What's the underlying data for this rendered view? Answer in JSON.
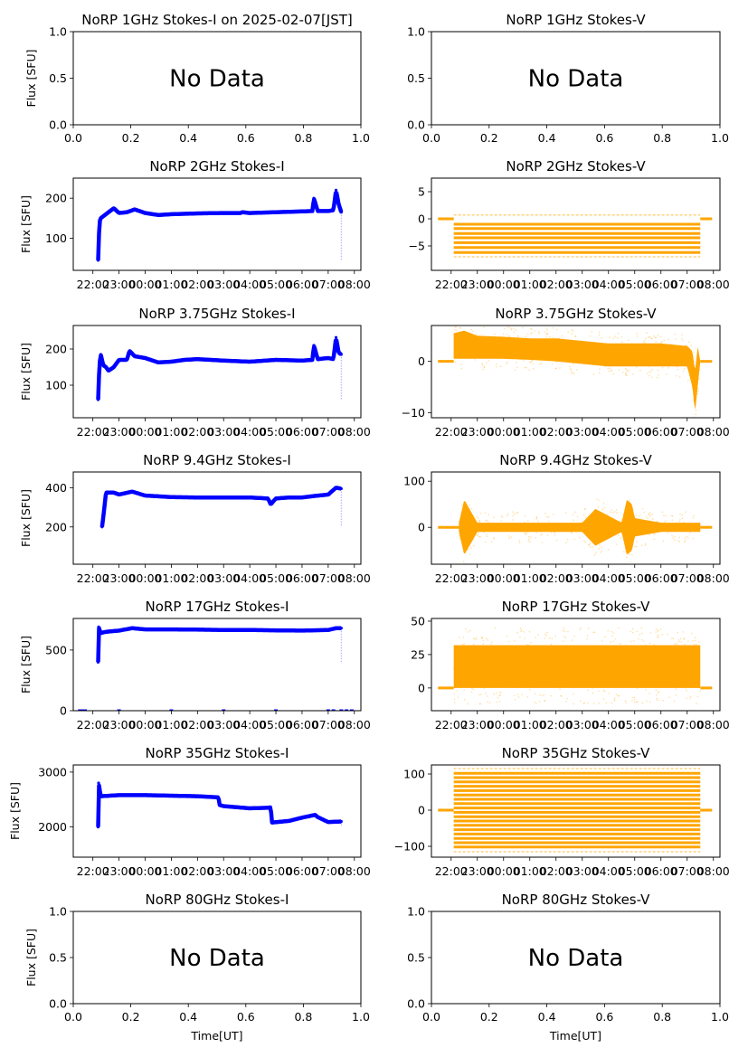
{
  "figure": {
    "time_ticks": [
      "22:00",
      "23:00",
      "00:00",
      "01:00",
      "02:00",
      "03:00",
      "04:00",
      "05:00",
      "06:00",
      "07:00",
      "08:00"
    ],
    "colors": {
      "stokes_i": "#0000ff",
      "stokes_v": "#ffa500"
    }
  },
  "chart_data": [
    {
      "id": "1ghz-i",
      "type": "scatter",
      "title": "NoRP 1GHz Stokes-I on 2025-02-07[JST]",
      "ylabel": "Flux [SFU]",
      "xlabel": "",
      "no_data": true,
      "no_data_text": "No Data",
      "xlim": [
        0,
        1
      ],
      "ylim": [
        0,
        1
      ],
      "xticks": [
        "0.0",
        "0.2",
        "0.4",
        "0.6",
        "0.8",
        "1.0"
      ],
      "yticks": [
        0.0,
        0.5,
        1.0
      ],
      "ytick_labels": [
        "0.0",
        "0.5",
        "1.0"
      ]
    },
    {
      "id": "1ghz-v",
      "type": "scatter",
      "title": "NoRP 1GHz Stokes-V",
      "ylabel": "",
      "xlabel": "",
      "no_data": true,
      "no_data_text": "No Data",
      "xlim": [
        0,
        1
      ],
      "ylim": [
        0,
        1
      ],
      "xticks": [
        "0.0",
        "0.2",
        "0.4",
        "0.6",
        "0.8",
        "1.0"
      ],
      "yticks": [
        0.0,
        0.5,
        1.0
      ],
      "ytick_labels": [
        "0.0",
        "0.5",
        "1.0"
      ]
    },
    {
      "id": "2ghz-i",
      "type": "scatter",
      "title": "NoRP 2GHz Stokes-I",
      "ylabel": "Flux [SFU]",
      "xlabel": "",
      "series_color": "#0000ff",
      "time_axis": true,
      "ylim": [
        20,
        250
      ],
      "yticks": [
        100,
        200
      ],
      "ytick_labels": [
        "100",
        "200"
      ],
      "x_hours": [
        0.2,
        0.25,
        0.3,
        0.5,
        0.6,
        0.8,
        1.0,
        1.3,
        1.6,
        2.0,
        2.5,
        3.0,
        4.0,
        5.0,
        5.65,
        5.7,
        6.0,
        7.0,
        8.0,
        8.4,
        8.45,
        8.6,
        9.0,
        9.2,
        9.3,
        9.4,
        9.5
      ],
      "values": [
        45,
        140,
        150,
        160,
        165,
        175,
        163,
        165,
        172,
        163,
        158,
        160,
        162,
        163,
        163,
        165,
        163,
        165,
        167,
        168,
        200,
        168,
        168,
        170,
        220,
        185,
        165
      ]
    },
    {
      "id": "2ghz-v",
      "type": "scatter",
      "title": "NoRP 2GHz Stokes-V",
      "ylabel": "",
      "xlabel": "",
      "series_color": "#ffa500",
      "time_axis": true,
      "banded": true,
      "ylim": [
        -9.5,
        7.5
      ],
      "yticks": [
        -5,
        0,
        5
      ],
      "ytick_labels": [
        "−5",
        "0",
        "5"
      ],
      "active_hours": [
        0.1,
        9.5
      ],
      "band_levels": [
        0.7,
        -1,
        -1.8,
        -2.7,
        -3.5,
        -4.4,
        -5.3,
        -6.2,
        -7
      ],
      "baseline": 0
    },
    {
      "id": "375ghz-i",
      "type": "scatter",
      "title": "NoRP 3.75GHz Stokes-I",
      "ylabel": "Flux [SFU]",
      "xlabel": "",
      "series_color": "#0000ff",
      "time_axis": true,
      "ylim": [
        10,
        265
      ],
      "yticks": [
        100,
        200
      ],
      "ytick_labels": [
        "100",
        "200"
      ],
      "x_hours": [
        0.2,
        0.25,
        0.3,
        0.4,
        0.5,
        0.6,
        0.8,
        1.0,
        1.3,
        1.4,
        1.6,
        2.0,
        2.5,
        3.0,
        3.5,
        4.0,
        5.0,
        6.0,
        7.0,
        8.0,
        8.4,
        8.45,
        8.6,
        9.0,
        9.2,
        9.3,
        9.4,
        9.5
      ],
      "values": [
        60,
        155,
        185,
        155,
        150,
        140,
        150,
        170,
        170,
        195,
        180,
        175,
        163,
        165,
        170,
        172,
        168,
        165,
        170,
        168,
        170,
        210,
        172,
        175,
        172,
        232,
        190,
        185
      ]
    },
    {
      "id": "375ghz-v",
      "type": "scatter",
      "title": "NoRP 3.75GHz Stokes-V",
      "ylabel": "",
      "xlabel": "",
      "series_color": "#ffa500",
      "time_axis": true,
      "ylim": [
        -11,
        7
      ],
      "yticks": [
        -10,
        0
      ],
      "ytick_labels": [
        "−10",
        "0"
      ],
      "x_hours": [
        0.1,
        0.5,
        1.0,
        2.0,
        3.0,
        4.0,
        5.0,
        6.0,
        7.0,
        8.0,
        9.0,
        9.2,
        9.3,
        9.4,
        9.5
      ],
      "upper": [
        5.5,
        6,
        5,
        4.8,
        4.5,
        4.5,
        4,
        3.5,
        3.5,
        3.5,
        3,
        2,
        -2,
        3,
        0
      ],
      "lower": [
        0.5,
        0.5,
        0.5,
        0.5,
        0.3,
        0,
        -0.5,
        -1,
        -1,
        -1,
        -1,
        -5,
        -10,
        -5,
        0
      ],
      "baseline": 0
    },
    {
      "id": "94ghz-i",
      "type": "scatter",
      "title": "NoRP 9.4GHz Stokes-I",
      "ylabel": "Flux [SFU]",
      "xlabel": "",
      "series_color": "#0000ff",
      "time_axis": true,
      "ylim": [
        10,
        480
      ],
      "yticks": [
        200,
        400
      ],
      "ytick_labels": [
        "200",
        "400"
      ],
      "x_hours": [
        0.35,
        0.4,
        0.5,
        0.8,
        1.0,
        1.5,
        2.0,
        3.0,
        4.0,
        5.0,
        6.0,
        6.7,
        6.8,
        7.0,
        7.5,
        8.0,
        8.5,
        9.0,
        9.3,
        9.5
      ],
      "values": [
        200,
        250,
        375,
        375,
        365,
        380,
        360,
        352,
        350,
        350,
        350,
        345,
        315,
        345,
        350,
        350,
        358,
        365,
        400,
        395
      ]
    },
    {
      "id": "94ghz-v",
      "type": "scatter",
      "title": "NoRP 9.4GHz Stokes-V",
      "ylabel": "",
      "xlabel": "",
      "series_color": "#ffa500",
      "time_axis": true,
      "ylim": [
        -80,
        120
      ],
      "yticks": [
        0,
        100
      ],
      "ytick_labels": [
        "0",
        "100"
      ],
      "x_hours": [
        0.3,
        0.5,
        1.0,
        2.0,
        3.0,
        4.0,
        5.0,
        5.5,
        6.5,
        6.7,
        6.9,
        7.0,
        8.0,
        9.0,
        9.5
      ],
      "upper": [
        10,
        60,
        10,
        10,
        10,
        10,
        10,
        40,
        10,
        60,
        50,
        20,
        10,
        10,
        10
      ],
      "lower": [
        -10,
        -60,
        -10,
        -10,
        -10,
        -10,
        -10,
        -40,
        -10,
        -60,
        -50,
        -20,
        -10,
        -10,
        -10
      ],
      "baseline": 0
    },
    {
      "id": "17ghz-i",
      "type": "scatter",
      "title": "NoRP 17GHz Stokes-I",
      "ylabel": "Flux [SFU]",
      "xlabel": "",
      "series_color": "#0000ff",
      "time_axis": true,
      "ylim": [
        0,
        760
      ],
      "yticks": [
        0,
        500
      ],
      "ytick_labels": [
        "0",
        "500"
      ],
      "x_hours": [
        0.2,
        0.22,
        0.3,
        0.5,
        1.0,
        1.5,
        2.0,
        3.0,
        4.0,
        5.0,
        6.0,
        7.0,
        8.0,
        9.0,
        9.3,
        9.5
      ],
      "values": [
        400,
        690,
        640,
        650,
        660,
        680,
        670,
        670,
        668,
        665,
        665,
        662,
        660,
        665,
        680,
        680
      ]
    },
    {
      "id": "17ghz-v",
      "type": "scatter",
      "title": "NoRP 17GHz Stokes-V",
      "ylabel": "",
      "xlabel": "",
      "series_color": "#ffa500",
      "time_axis": true,
      "ylim": [
        -17,
        52
      ],
      "yticks": [
        0,
        25,
        50
      ],
      "ytick_labels": [
        "0",
        "25",
        "50"
      ],
      "active_hours": [
        0.1,
        9.5
      ],
      "upper_value": 32,
      "lower_value": 0,
      "scatter_range": [
        -12,
        45
      ],
      "baseline": 0
    },
    {
      "id": "35ghz-i",
      "type": "scatter",
      "title": "NoRP 35GHz Stokes-I",
      "ylabel": "Flux [SFU]",
      "xlabel": "",
      "series_color": "#0000ff",
      "time_axis": true,
      "ylim": [
        1450,
        3130
      ],
      "yticks": [
        2000,
        3000
      ],
      "ytick_labels": [
        "2000",
        "3000"
      ],
      "x_hours": [
        0.2,
        0.22,
        0.3,
        1.0,
        2.0,
        3.0,
        4.0,
        4.8,
        4.85,
        5.0,
        6.0,
        6.7,
        6.8,
        6.85,
        7.5,
        8.0,
        8.5,
        8.6,
        9.0,
        9.5
      ],
      "values": [
        2000,
        2800,
        2560,
        2580,
        2580,
        2570,
        2560,
        2540,
        2400,
        2380,
        2340,
        2350,
        2360,
        2080,
        2110,
        2170,
        2220,
        2180,
        2090,
        2100
      ]
    },
    {
      "id": "35ghz-v",
      "type": "scatter",
      "title": "NoRP 35GHz Stokes-V",
      "ylabel": "",
      "xlabel": "",
      "series_color": "#ffa500",
      "time_axis": true,
      "banded": true,
      "ylim": [
        -130,
        125
      ],
      "yticks": [
        -100,
        0,
        100
      ],
      "ytick_labels": [
        "−100",
        "0",
        "100"
      ],
      "active_hours": [
        0.1,
        9.5
      ],
      "band_levels": [
        115,
        102,
        90,
        78,
        66,
        54,
        42,
        30,
        18,
        6,
        -6,
        -18,
        -30,
        -42,
        -54,
        -66,
        -78,
        -90,
        -102,
        -115
      ],
      "baseline": 0
    },
    {
      "id": "80ghz-i",
      "type": "scatter",
      "title": "NoRP 80GHz Stokes-I",
      "ylabel": "Flux [SFU]",
      "xlabel": "Time[UT]",
      "no_data": true,
      "no_data_text": "No Data",
      "xlim": [
        0,
        1
      ],
      "ylim": [
        0,
        1
      ],
      "xticks": [
        "0.0",
        "0.2",
        "0.4",
        "0.6",
        "0.8",
        "1.0"
      ],
      "yticks": [
        0.0,
        0.5,
        1.0
      ],
      "ytick_labels": [
        "0.0",
        "0.5",
        "1.0"
      ]
    },
    {
      "id": "80ghz-v",
      "type": "scatter",
      "title": "NoRP 80GHz Stokes-V",
      "ylabel": "",
      "xlabel": "Time[UT]",
      "no_data": true,
      "no_data_text": "No Data",
      "xlim": [
        0,
        1
      ],
      "ylim": [
        0,
        1
      ],
      "xticks": [
        "0.0",
        "0.2",
        "0.4",
        "0.6",
        "0.8",
        "1.0"
      ],
      "yticks": [
        0.0,
        0.5,
        1.0
      ],
      "ytick_labels": [
        "0.0",
        "0.5",
        "1.0"
      ]
    }
  ]
}
